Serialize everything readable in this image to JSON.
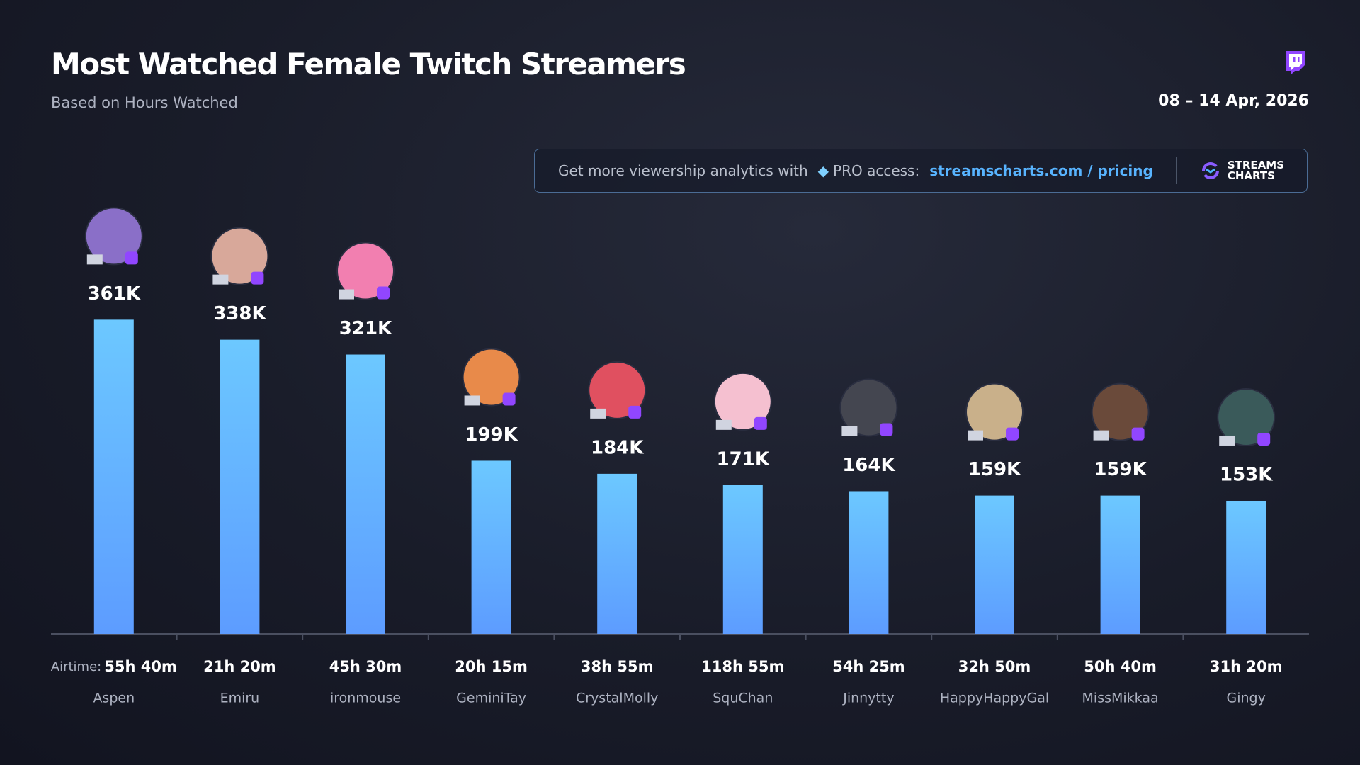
{
  "chart_data": {
    "type": "bar",
    "title": "Most Watched Female Twitch Streamers",
    "subtitle": "Based on Hours Watched",
    "date_range": "08 – 14 Apr, 2026",
    "banner": {
      "text": "Get more viewership analytics with",
      "pro": "PRO access:",
      "link": "streamscharts.com / pricing",
      "brand_line1": "STREAMS",
      "brand_line2": "CHARTS"
    },
    "categories": [
      "Aspen",
      "Emiru",
      "ironmouse",
      "GeminiTay",
      "CrystalMolly",
      "SquChan",
      "Jinnytty",
      "HappyHappyGal",
      "MissMikkaa",
      "Gingy"
    ],
    "values": [
      361000,
      338000,
      321000,
      199000,
      184000,
      171000,
      164000,
      159000,
      159000,
      153000
    ],
    "value_labels": [
      "361K",
      "338K",
      "321K",
      "199K",
      "184K",
      "171K",
      "164K",
      "159K",
      "159K",
      "153K"
    ],
    "airtime_label": "Airtime:",
    "airtime": [
      "55h 40m",
      "21h 20m",
      "45h 30m",
      "20h 15m",
      "38h 55m",
      "118h 55m",
      "54h 25m",
      "32h 50m",
      "50h 40m",
      "31h 20m"
    ],
    "color": "#66c4ff",
    "ylim": [
      0,
      450000
    ]
  }
}
